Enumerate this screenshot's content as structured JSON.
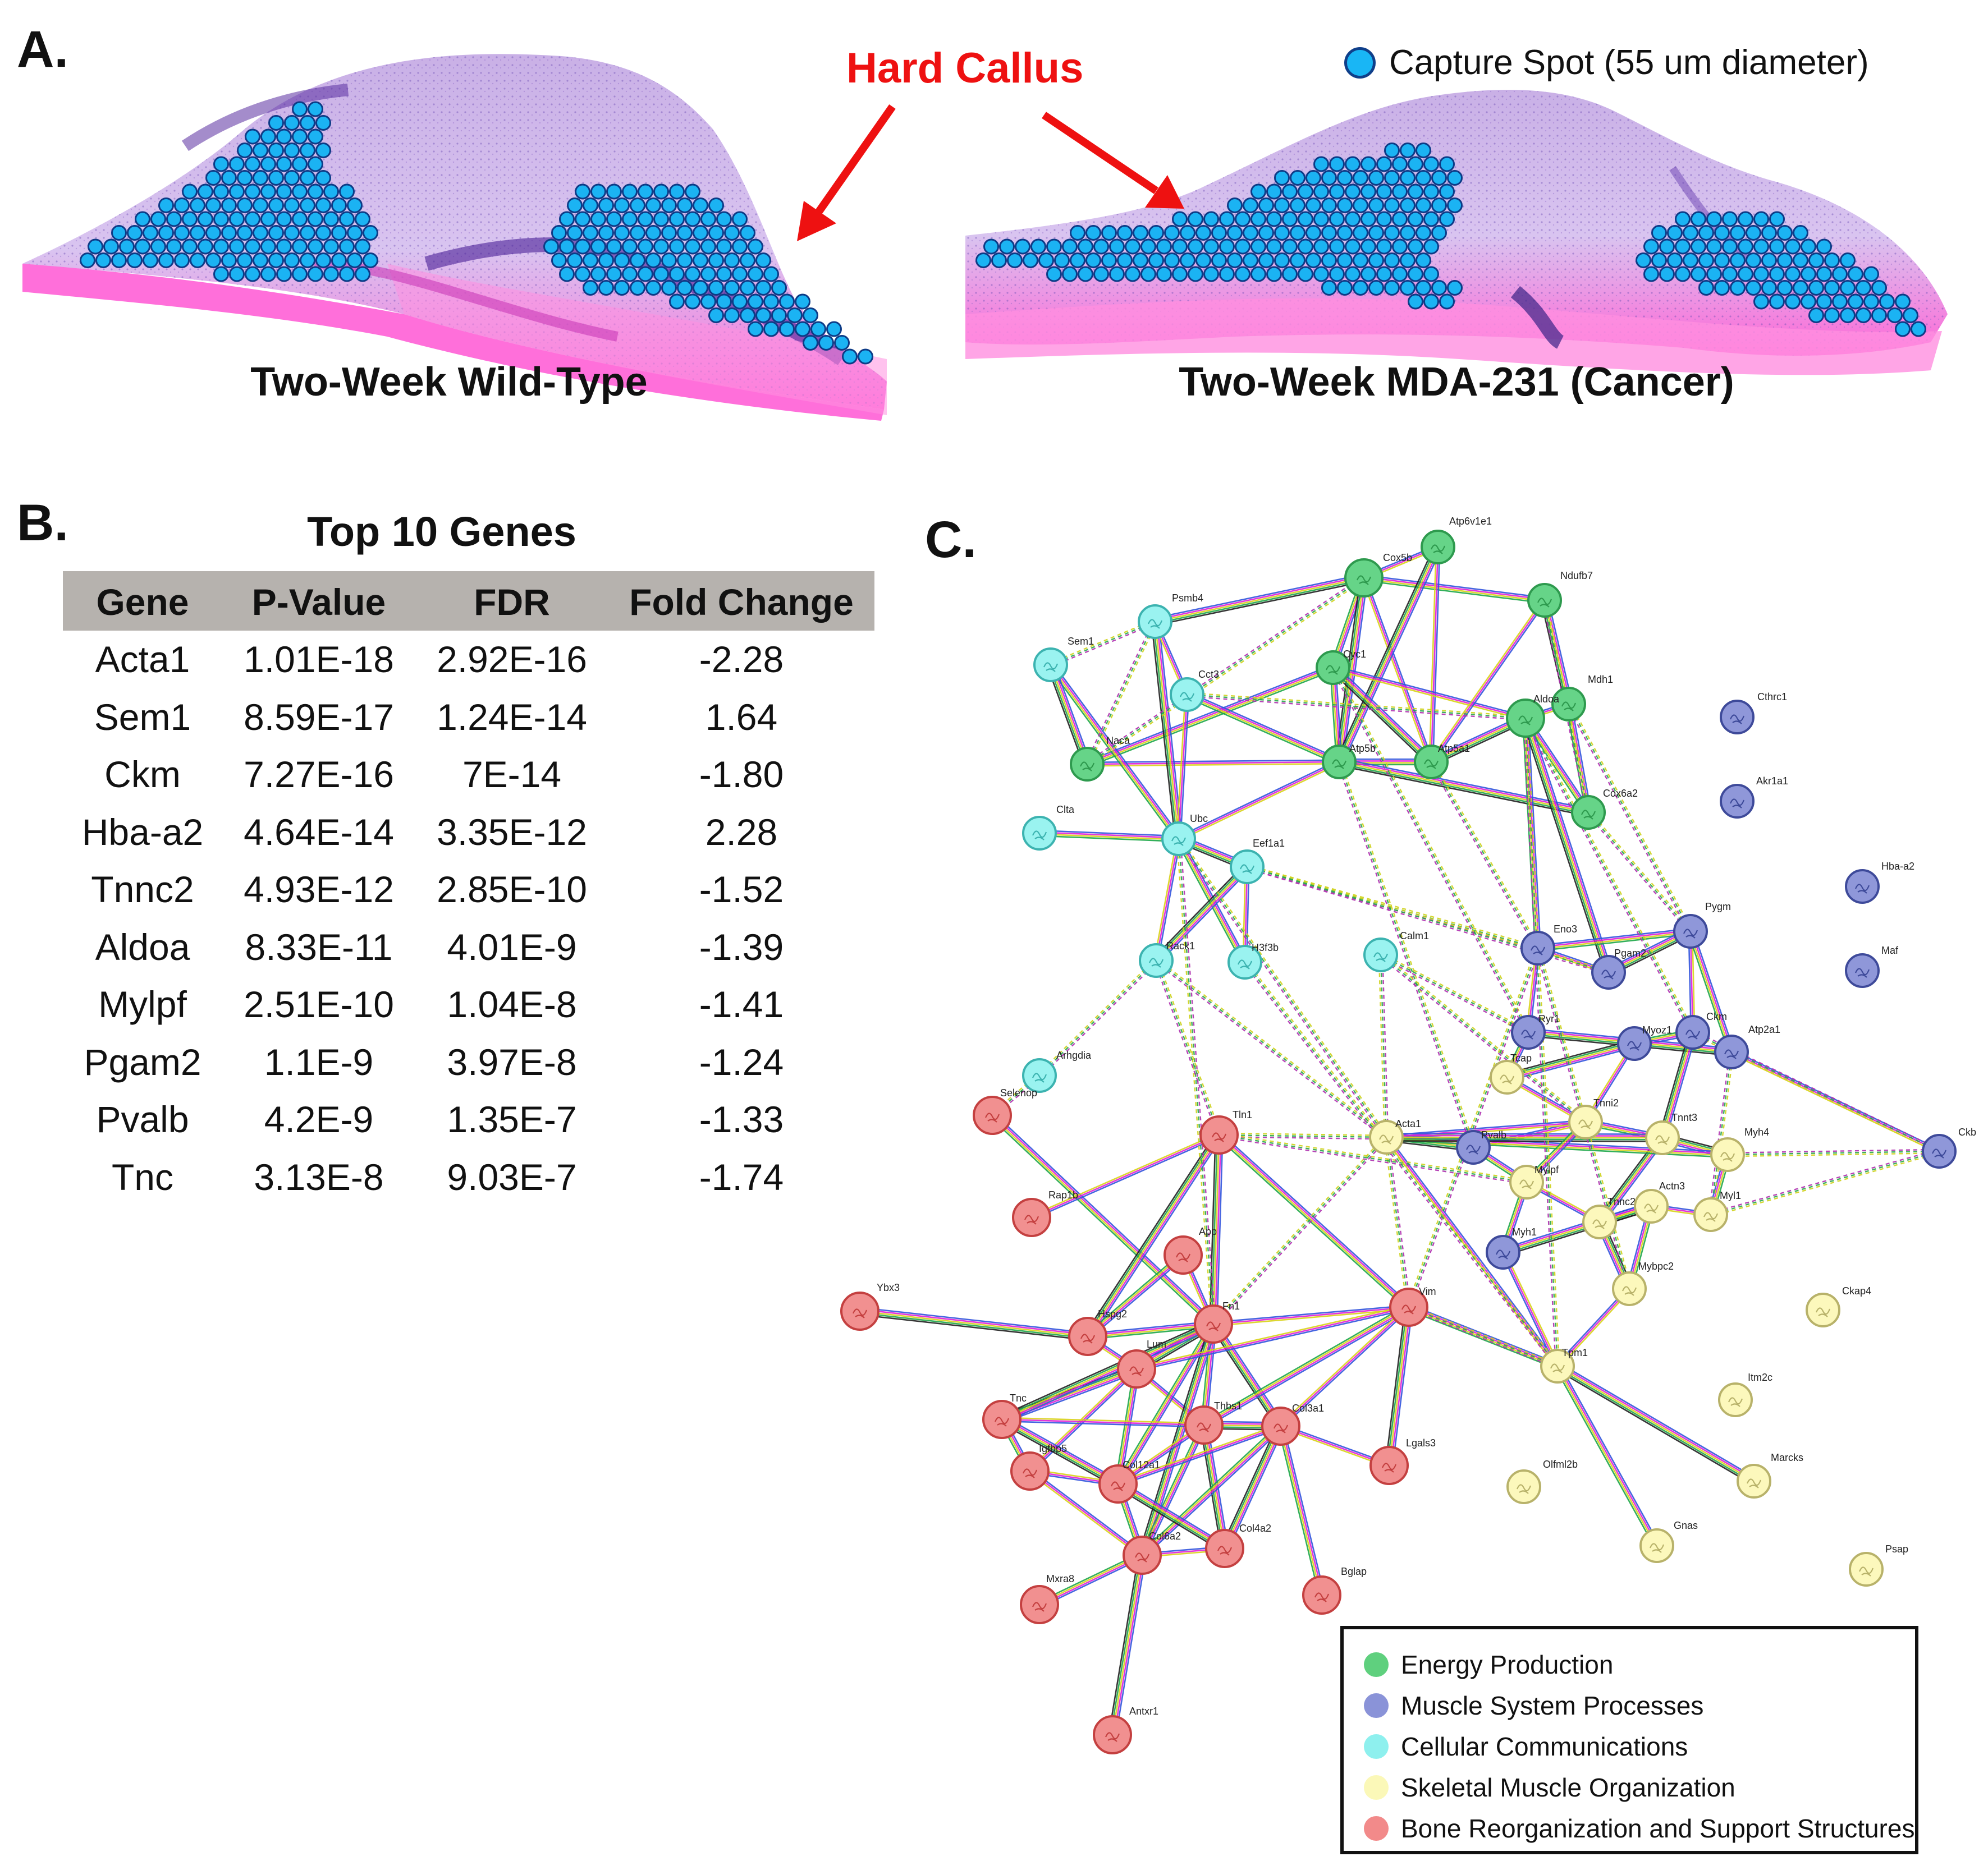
{
  "panel_a": {
    "letter": "A.",
    "callout": "Hard Callus",
    "legend_label": "Capture Spot (55 um diameter)",
    "left_caption": "Two-Week Wild-Type",
    "right_caption": "Two-Week MDA-231 (Cancer)"
  },
  "panel_b": {
    "letter": "B.",
    "title": "Top 10 Genes",
    "headers": [
      "Gene",
      "P-Value",
      "FDR",
      "Fold Change"
    ],
    "rows": [
      [
        "Acta1",
        "1.01E-18",
        "2.92E-16",
        "-2.28"
      ],
      [
        "Sem1",
        "8.59E-17",
        "1.24E-14",
        "1.64"
      ],
      [
        "Ckm",
        "7.27E-16",
        "7E-14",
        "-1.80"
      ],
      [
        "Hba-a2",
        "4.64E-14",
        "3.35E-12",
        "2.28"
      ],
      [
        "Tnnc2",
        "4.93E-12",
        "2.85E-10",
        "-1.52"
      ],
      [
        "Aldoa",
        "8.33E-11",
        "4.01E-9",
        "-1.39"
      ],
      [
        "Mylpf",
        "2.51E-10",
        "1.04E-8",
        "-1.41"
      ],
      [
        "Pgam2",
        "1.1E-9",
        "3.97E-8",
        "-1.24"
      ],
      [
        "Pvalb",
        "4.2E-9",
        "1.35E-7",
        "-1.33"
      ],
      [
        "Tnc",
        "3.13E-8",
        "9.03E-7",
        "-1.74"
      ]
    ]
  },
  "panel_c": {
    "letter": "C.",
    "legend": [
      {
        "label": "Energy Production",
        "color": "#5fd07e"
      },
      {
        "label": "Muscle System Processes",
        "color": "#8a93d8"
      },
      {
        "label": "Cellular Communications",
        "color": "#8ef0ee"
      },
      {
        "label": "Skeletal Muscle Organization",
        "color": "#fbf8b8"
      },
      {
        "label": "Bone Reorganization and Support Structures",
        "color": "#f28a8a"
      }
    ],
    "groups": {
      "energy": {
        "fill": "#66d488",
        "stroke": "#2e9a4e"
      },
      "muscle": {
        "fill": "#8f97d9",
        "stroke": "#3e4a9a"
      },
      "comm": {
        "fill": "#9af3f0",
        "stroke": "#3cb3b0"
      },
      "skel": {
        "fill": "#fcf8bc",
        "stroke": "#b8b26a"
      },
      "bone": {
        "fill": "#f19090",
        "stroke": "#c44040"
      }
    },
    "nodes": [
      {
        "id": "Atp6v1e1",
        "g": "energy"
      },
      {
        "id": "Cox5b",
        "g": "energy"
      },
      {
        "id": "Ndufb7",
        "g": "energy"
      },
      {
        "id": "Cyc1",
        "g": "energy"
      },
      {
        "id": "Mdh1",
        "g": "energy"
      },
      {
        "id": "Aldoa",
        "g": "energy"
      },
      {
        "id": "Naca",
        "g": "energy"
      },
      {
        "id": "Atp5b",
        "g": "energy"
      },
      {
        "id": "Atp5a1",
        "g": "energy"
      },
      {
        "id": "Cox6a2",
        "g": "energy"
      },
      {
        "id": "Psmb4",
        "g": "comm"
      },
      {
        "id": "Sem1",
        "g": "comm"
      },
      {
        "id": "Cct3",
        "g": "comm"
      },
      {
        "id": "Clta",
        "g": "comm"
      },
      {
        "id": "Ubc",
        "g": "comm"
      },
      {
        "id": "Eef1a1",
        "g": "comm"
      },
      {
        "id": "Rack1",
        "g": "comm"
      },
      {
        "id": "H3f3b",
        "g": "comm"
      },
      {
        "id": "Calm1",
        "g": "comm"
      },
      {
        "id": "Arhgdia",
        "g": "comm"
      },
      {
        "id": "Cthrc1",
        "g": "muscle"
      },
      {
        "id": "Akr1a1",
        "g": "muscle"
      },
      {
        "id": "Hba-a2",
        "g": "muscle"
      },
      {
        "id": "Maf",
        "g": "muscle"
      },
      {
        "id": "Pygm",
        "g": "muscle"
      },
      {
        "id": "Eno3",
        "g": "muscle"
      },
      {
        "id": "Pgam2",
        "g": "muscle"
      },
      {
        "id": "Ryr1",
        "g": "muscle"
      },
      {
        "id": "Myoz1",
        "g": "muscle"
      },
      {
        "id": "Ckm",
        "g": "muscle"
      },
      {
        "id": "Atp2a1",
        "g": "muscle"
      },
      {
        "id": "Ckb",
        "g": "muscle"
      },
      {
        "id": "Pvalb",
        "g": "muscle"
      },
      {
        "id": "Myh1",
        "g": "muscle"
      },
      {
        "id": "Tcap",
        "g": "skel"
      },
      {
        "id": "Tnni2",
        "g": "skel"
      },
      {
        "id": "Tnnt3",
        "g": "skel"
      },
      {
        "id": "Acta1",
        "g": "skel"
      },
      {
        "id": "Myh4",
        "g": "skel"
      },
      {
        "id": "Mylpf",
        "g": "skel"
      },
      {
        "id": "Tnnc2",
        "g": "skel"
      },
      {
        "id": "Actn3",
        "g": "skel"
      },
      {
        "id": "Myl1",
        "g": "skel"
      },
      {
        "id": "Mybpc2",
        "g": "skel"
      },
      {
        "id": "Tpm1",
        "g": "skel"
      },
      {
        "id": "Ckap4",
        "g": "skel"
      },
      {
        "id": "Itm2c",
        "g": "skel"
      },
      {
        "id": "Marcks",
        "g": "skel"
      },
      {
        "id": "Olfml2b",
        "g": "skel"
      },
      {
        "id": "Gnas",
        "g": "skel"
      },
      {
        "id": "Psap",
        "g": "skel"
      },
      {
        "id": "Selenop",
        "g": "bone"
      },
      {
        "id": "Tln1",
        "g": "bone"
      },
      {
        "id": "Rap1b",
        "g": "bone"
      },
      {
        "id": "App",
        "g": "bone"
      },
      {
        "id": "Ybx3",
        "g": "bone"
      },
      {
        "id": "Hspg2",
        "g": "bone"
      },
      {
        "id": "Fn1",
        "g": "bone"
      },
      {
        "id": "Vim",
        "g": "bone"
      },
      {
        "id": "Lum",
        "g": "bone"
      },
      {
        "id": "Tnc",
        "g": "bone"
      },
      {
        "id": "Thbs1",
        "g": "bone"
      },
      {
        "id": "Col3a1",
        "g": "bone"
      },
      {
        "id": "Igfbp5",
        "g": "bone"
      },
      {
        "id": "Col12a1",
        "g": "bone"
      },
      {
        "id": "Lgals3",
        "g": "bone"
      },
      {
        "id": "Col6a2",
        "g": "bone"
      },
      {
        "id": "Col4a2",
        "g": "bone"
      },
      {
        "id": "Mxra8",
        "g": "bone"
      },
      {
        "id": "Bglap",
        "g": "bone"
      },
      {
        "id": "Antxr1",
        "g": "bone"
      }
    ],
    "edges": [
      [
        "Cox5b",
        "Atp6v1e1"
      ],
      [
        "Cox5b",
        "Cyc1"
      ],
      [
        "Cox5b",
        "Atp5b"
      ],
      [
        "Cox5b",
        "Atp5a1"
      ],
      [
        "Cox5b",
        "Ndufb7"
      ],
      [
        "Atp6v1e1",
        "Atp5b"
      ],
      [
        "Atp6v1e1",
        "Atp5a1"
      ],
      [
        "Cyc1",
        "Atp5b"
      ],
      [
        "Cyc1",
        "Atp5a1"
      ],
      [
        "Cyc1",
        "Aldoa"
      ],
      [
        "Atp5b",
        "Atp5a1"
      ],
      [
        "Atp5a1",
        "Aldoa"
      ],
      [
        "Aldoa",
        "Mdh1"
      ],
      [
        "Aldoa",
        "Cox6a2"
      ],
      [
        "Atp5b",
        "Cox6a2"
      ],
      [
        "Naca",
        "Atp5b"
      ],
      [
        "Naca",
        "Cyc1"
      ],
      [
        "Ndufb7",
        "Mdh1"
      ],
      [
        "Ndufb7",
        "Atp5a1"
      ],
      [
        "Mdh1",
        "Cox6a2"
      ],
      [
        "Psmb4",
        "Ubc"
      ],
      [
        "Psmb4",
        "Cct3"
      ],
      [
        "Sem1",
        "Ubc"
      ],
      [
        "Sem1",
        "Naca"
      ],
      [
        "Cct3",
        "Ubc"
      ],
      [
        "Clta",
        "Ubc"
      ],
      [
        "Ubc",
        "Eef1a1"
      ],
      [
        "Ubc",
        "Rack1"
      ],
      [
        "Ubc",
        "H3f3b"
      ],
      [
        "Eef1a1",
        "Rack1"
      ],
      [
        "Eef1a1",
        "H3f3b"
      ],
      [
        "Cct3",
        "Atp5b"
      ],
      [
        "Psmb4",
        "Cox5b"
      ],
      [
        "Ubc",
        "Atp5b"
      ],
      [
        "Aldoa",
        "Eno3"
      ],
      [
        "Aldoa",
        "Pgam2"
      ],
      [
        "Eno3",
        "Pgam2"
      ],
      [
        "Eno3",
        "Pygm"
      ],
      [
        "Pgam2",
        "Pygm"
      ],
      [
        "Ckm",
        "Pygm"
      ],
      [
        "Ckm",
        "Myoz1"
      ],
      [
        "Ryr1",
        "Atp2a1"
      ],
      [
        "Atp2a1",
        "Ckb"
      ],
      [
        "Ryr1",
        "Tcap"
      ],
      [
        "Myoz1",
        "Tcap"
      ],
      [
        "Tcap",
        "Tnni2"
      ],
      [
        "Tnni2",
        "Tnnt3"
      ],
      [
        "Tnnt3",
        "Tnnc2"
      ],
      [
        "Tnnc2",
        "Mylpf"
      ],
      [
        "Mylpf",
        "Myh1"
      ],
      [
        "Myh1",
        "Actn3"
      ],
      [
        "Actn3",
        "Myl1"
      ],
      [
        "Myl1",
        "Myh4"
      ],
      [
        "Myh4",
        "Tnnt3"
      ],
      [
        "Pvalb",
        "Tnni2"
      ],
      [
        "Pvalb",
        "Mylpf"
      ],
      [
        "Acta1",
        "Pvalb"
      ],
      [
        "Acta1",
        "Tnni2"
      ],
      [
        "Acta1",
        "Myh4"
      ],
      [
        "Acta1",
        "Tnnt3"
      ],
      [
        "Acta1",
        "Tpm1"
      ],
      [
        "Mybpc2",
        "Actn3"
      ],
      [
        "Mybpc2",
        "Tnnc2"
      ],
      [
        "Tpm1",
        "Mybpc2"
      ],
      [
        "Tpm1",
        "Gnas"
      ],
      [
        "Tpm1",
        "Marcks"
      ],
      [
        "Tpm1",
        "Myh1"
      ],
      [
        "Tnni2",
        "Mylpf"
      ],
      [
        "Tnnc2",
        "Actn3"
      ],
      [
        "Eno3",
        "Ryr1"
      ],
      [
        "Pygm",
        "Atp2a1"
      ],
      [
        "Ckm",
        "Tnnt3"
      ],
      [
        "Myoz1",
        "Tnni2"
      ],
      [
        "Selenop",
        "Fn1"
      ],
      [
        "Tln1",
        "Fn1"
      ],
      [
        "Tln1",
        "Rap1b"
      ],
      [
        "Tln1",
        "Vim"
      ],
      [
        "Tln1",
        "Hspg2"
      ],
      [
        "App",
        "Fn1"
      ],
      [
        "App",
        "Hspg2"
      ],
      [
        "Ybx3",
        "Hspg2"
      ],
      [
        "Hspg2",
        "Lum"
      ],
      [
        "Hspg2",
        "Fn1"
      ],
      [
        "Lum",
        "Fn1"
      ],
      [
        "Lum",
        "Thbs1"
      ],
      [
        "Lum",
        "Col12a1"
      ],
      [
        "Lum",
        "Tnc"
      ],
      [
        "Lum",
        "Igfbp5"
      ],
      [
        "Fn1",
        "Thbs1"
      ],
      [
        "Fn1",
        "Col3a1"
      ],
      [
        "Fn1",
        "Vim"
      ],
      [
        "Fn1",
        "Col12a1"
      ],
      [
        "Fn1",
        "Col6a2"
      ],
      [
        "Vim",
        "Lum"
      ],
      [
        "Vim",
        "Thbs1"
      ],
      [
        "Vim",
        "Lgals3"
      ],
      [
        "Vim",
        "Col3a1"
      ],
      [
        "Vim",
        "Tpm1"
      ],
      [
        "Thbs1",
        "Col3a1"
      ],
      [
        "Thbs1",
        "Col12a1"
      ],
      [
        "Thbs1",
        "Col6a2"
      ],
      [
        "Thbs1",
        "Col4a2"
      ],
      [
        "Col3a1",
        "Col12a1"
      ],
      [
        "Col3a1",
        "Col6a2"
      ],
      [
        "Col3a1",
        "Col4a2"
      ],
      [
        "Col3a1",
        "Lgals3"
      ],
      [
        "Col12a1",
        "Col6a2"
      ],
      [
        "Col12a1",
        "Col4a2"
      ],
      [
        "Col6a2",
        "Col4a2"
      ],
      [
        "Col6a2",
        "Mxra8"
      ],
      [
        "Col6a2",
        "Antxr1"
      ],
      [
        "Col12a1",
        "Igfbp5"
      ],
      [
        "Tnc",
        "Igfbp5"
      ],
      [
        "Tnc",
        "Col12a1"
      ],
      [
        "Igfbp5",
        "Col6a2"
      ],
      [
        "Col3a1",
        "Bglap"
      ],
      [
        "Fn1",
        "Tnc"
      ],
      [
        "Thbs1",
        "Tnc"
      ]
    ],
    "dashed_edges": [
      [
        "Tln1",
        "Acta1"
      ],
      [
        "Vim",
        "Acta1"
      ],
      [
        "Acta1",
        "Calm1"
      ],
      [
        "Ubc",
        "Acta1"
      ],
      [
        "Rack1",
        "Acta1"
      ],
      [
        "Eef1a1",
        "Eno3"
      ],
      [
        "Eef1a1",
        "Pgam2"
      ],
      [
        "Cox6a2",
        "Pygm"
      ],
      [
        "Aldoa",
        "Ckm"
      ],
      [
        "Cyc1",
        "Ryr1"
      ],
      [
        "Atp5a1",
        "Eno3"
      ],
      [
        "Atp5b",
        "Pvalb"
      ],
      [
        "Calm1",
        "Ryr1"
      ],
      [
        "Calm1",
        "Tnni2"
      ],
      [
        "Arhgdia",
        "Rack1"
      ],
      [
        "Psmb4",
        "Naca"
      ],
      [
        "Sem1",
        "Psmb4"
      ],
      [
        "Cct3",
        "Aldoa"
      ],
      [
        "Vim",
        "Eno3"
      ],
      [
        "Fn1",
        "Ubc"
      ],
      [
        "Tln1",
        "Mylpf"
      ],
      [
        "Fn1",
        "Acta1"
      ],
      [
        "H3f3b",
        "Tpm1"
      ],
      [
        "Rack1",
        "Tln1"
      ],
      [
        "Ckb",
        "Myh4"
      ],
      [
        "Ckb",
        "Myl1"
      ],
      [
        "Ckb",
        "Ckm"
      ],
      [
        "Selenop",
        "Arhgdia"
      ],
      [
        "Aldoa",
        "Tpm1"
      ],
      [
        "Eno3",
        "Mybpc2"
      ],
      [
        "Atp2a1",
        "Myl1"
      ],
      [
        "Cox5b",
        "Naca"
      ],
      [
        "Ndufb7",
        "Cox6a2"
      ],
      [
        "Vim",
        "Tpm1"
      ],
      [
        "Mdh1",
        "Pygm"
      ]
    ]
  }
}
